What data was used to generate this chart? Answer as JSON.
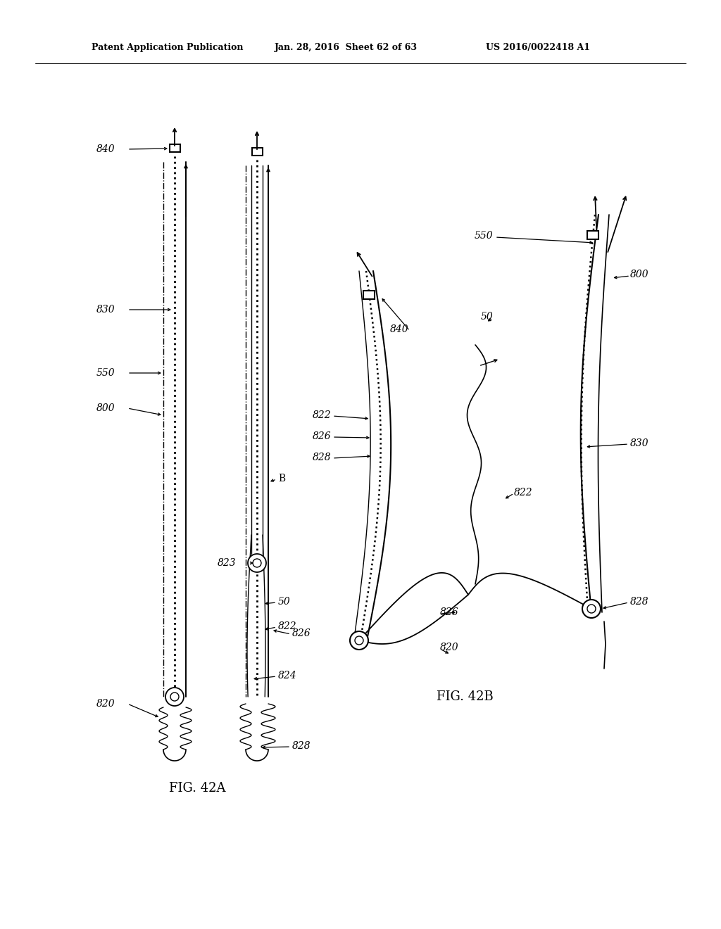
{
  "title_left": "Patent Application Publication",
  "title_mid": "Jan. 28, 2016  Sheet 62 of 63",
  "title_right": "US 2016/0022418 A1",
  "fig42a_label": "FIG. 42A",
  "fig42b_label": "FIG. 42B",
  "bg_color": "#ffffff"
}
